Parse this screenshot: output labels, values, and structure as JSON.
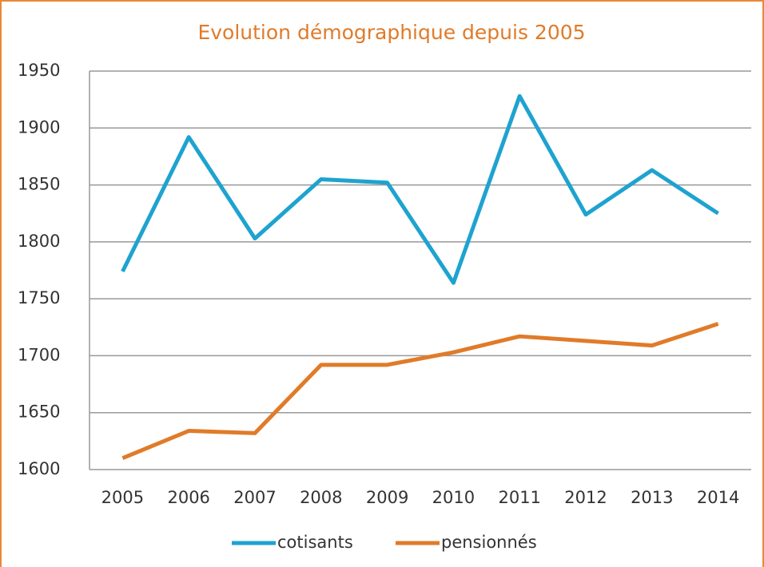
{
  "chart_data": {
    "type": "line",
    "title": "Evolution démographique depuis 2005",
    "categories": [
      "2005",
      "2006",
      "2007",
      "2008",
      "2009",
      "2010",
      "2011",
      "2012",
      "2013",
      "2014"
    ],
    "series": [
      {
        "name": "cotisants",
        "color": "#1ea3d0",
        "values": [
          1774,
          1892,
          1803,
          1855,
          1852,
          1764,
          1928,
          1824,
          1863,
          1825
        ]
      },
      {
        "name": "pensionnés",
        "color": "#e07b29",
        "values": [
          1610,
          1634,
          1632,
          1692,
          1692,
          1703,
          1717,
          1713,
          1709,
          1728
        ]
      }
    ],
    "ylim": [
      1600,
      1950
    ],
    "yticks": [
      1600,
      1650,
      1700,
      1750,
      1800,
      1850,
      1900,
      1950
    ],
    "grid": true,
    "legend": "bottom"
  }
}
